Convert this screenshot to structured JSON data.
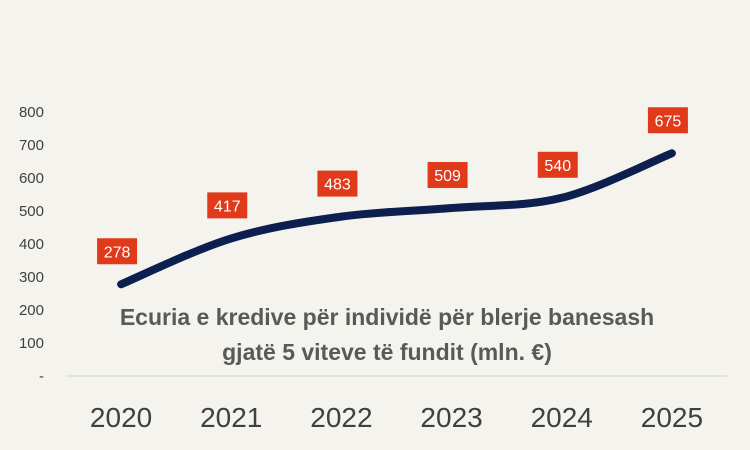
{
  "chart_data": {
    "type": "line",
    "title": "Ecuria e kredive për individë për blerje banesash gjatë 5 viteve të fundit (mln. €)",
    "title_lines": [
      "Ecuria e kredive për individë për blerje banesash",
      "gjatë 5 viteve të fundit (mln. €)"
    ],
    "xlabel": "",
    "ylabel": "",
    "categories": [
      "2020",
      "2021",
      "2022",
      "2023",
      "2024",
      "2025"
    ],
    "series": [
      {
        "values": [
          278,
          417,
          483,
          509,
          540,
          675
        ]
      }
    ],
    "data_labels": [
      "278",
      "417",
      "483",
      "509",
      "540",
      "675"
    ],
    "y_ticks": [
      "-",
      "100",
      "200",
      "300",
      "400",
      "500",
      "600",
      "700",
      "800"
    ],
    "y_tick_values": [
      0,
      100,
      200,
      300,
      400,
      500,
      600,
      700,
      800
    ],
    "ylim": [
      0,
      800
    ],
    "grid": false,
    "smooth": true,
    "colors": {
      "line": "#0c1f4e",
      "label_bg": "#e03a1b",
      "label_text": "#ffffff",
      "axis": "#d0d0d0",
      "background": "#f4f3ee"
    }
  }
}
